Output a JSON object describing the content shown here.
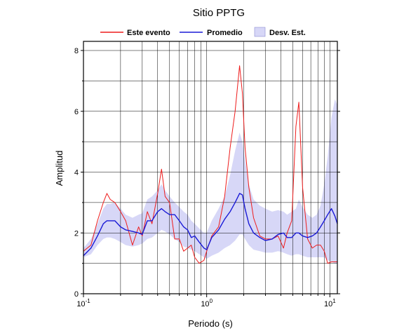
{
  "chart_data": {
    "type": "line",
    "title": "Sitio PPTG",
    "xlabel": "Periodo (s)",
    "ylabel": "Amplitud",
    "x_scale": "log",
    "xlim": [
      0.1,
      11.5
    ],
    "ylim": [
      0,
      8.3
    ],
    "x_ticks": [
      {
        "base": "10",
        "exp": "-1",
        "value": 0.1
      },
      {
        "base": "10",
        "exp": "0",
        "value": 1
      },
      {
        "base": "10",
        "exp": "1",
        "value": 10
      }
    ],
    "y_ticks": [
      0,
      2,
      4,
      6,
      8
    ],
    "grid": true,
    "legend_position": "top",
    "legend": [
      {
        "label": "Este evento",
        "kind": "line",
        "color": "#ee1c1c"
      },
      {
        "label": "Promedio",
        "kind": "line",
        "color": "#1a1ad6"
      },
      {
        "label": "Desv. Est.",
        "kind": "band",
        "color": "#d7d7f7"
      }
    ],
    "x": [
      0.1,
      0.115,
      0.13,
      0.145,
      0.155,
      0.165,
      0.18,
      0.2,
      0.22,
      0.25,
      0.28,
      0.3,
      0.33,
      0.36,
      0.4,
      0.43,
      0.46,
      0.5,
      0.55,
      0.6,
      0.65,
      0.7,
      0.75,
      0.8,
      0.87,
      0.95,
      1.0,
      1.1,
      1.25,
      1.4,
      1.55,
      1.7,
      1.85,
      1.95,
      2.05,
      2.2,
      2.4,
      2.7,
      3.0,
      3.4,
      3.8,
      4.2,
      4.5,
      4.9,
      5.3,
      5.6,
      6.0,
      6.6,
      7.2,
      7.8,
      8.4,
      9.0,
      9.6,
      10.3,
      11.0,
      11.5
    ],
    "series": [
      {
        "name": "Este evento",
        "color": "#ee1c1c",
        "values": [
          1.4,
          1.6,
          2.4,
          3.0,
          3.3,
          3.1,
          3.0,
          2.7,
          2.4,
          1.6,
          2.2,
          1.9,
          2.7,
          2.3,
          3.3,
          4.1,
          3.2,
          3.0,
          1.8,
          1.8,
          1.4,
          1.5,
          1.6,
          1.2,
          1.0,
          1.1,
          1.4,
          1.9,
          2.2,
          3.2,
          4.8,
          6.0,
          7.5,
          6.6,
          4.8,
          3.5,
          2.5,
          1.9,
          1.8,
          1.8,
          1.9,
          1.5,
          2.0,
          2.4,
          5.5,
          6.3,
          3.5,
          1.8,
          1.5,
          1.6,
          1.6,
          1.4,
          1.0,
          1.05,
          1.05,
          1.05
        ]
      },
      {
        "name": "Promedio",
        "color": "#1a1ad6",
        "values": [
          1.25,
          1.5,
          1.9,
          2.3,
          2.4,
          2.4,
          2.4,
          2.2,
          2.1,
          2.05,
          2.0,
          1.95,
          2.4,
          2.4,
          2.7,
          2.8,
          2.7,
          2.6,
          2.6,
          2.4,
          2.2,
          2.1,
          1.85,
          1.9,
          1.7,
          1.5,
          1.45,
          1.85,
          2.1,
          2.45,
          2.7,
          3.0,
          3.3,
          3.25,
          2.8,
          2.3,
          2.0,
          1.85,
          1.75,
          1.8,
          1.95,
          2.0,
          1.85,
          1.85,
          2.0,
          2.0,
          1.9,
          1.85,
          1.9,
          2.0,
          2.2,
          2.4,
          2.6,
          2.8,
          2.55,
          2.3
        ]
      }
    ],
    "band": {
      "name": "Desv. Est.",
      "color": "#d7d7f7",
      "upper": [
        1.5,
        1.8,
        2.3,
        2.8,
        2.95,
        2.95,
        3.0,
        2.8,
        2.6,
        2.5,
        2.6,
        2.65,
        3.1,
        3.2,
        3.4,
        3.6,
        3.4,
        3.2,
        3.0,
        2.85,
        2.7,
        2.6,
        2.4,
        2.3,
        2.15,
        2.0,
        2.0,
        2.4,
        2.8,
        3.2,
        3.9,
        4.7,
        5.3,
        5.0,
        4.4,
        3.6,
        3.1,
        2.9,
        2.8,
        2.7,
        2.75,
        2.7,
        2.6,
        2.7,
        2.8,
        3.1,
        2.85,
        2.6,
        2.5,
        2.6,
        2.9,
        3.6,
        4.5,
        5.8,
        6.4,
        6.2
      ],
      "lower": [
        1.2,
        1.3,
        1.6,
        1.8,
        1.85,
        1.85,
        1.8,
        1.7,
        1.6,
        1.55,
        1.6,
        1.65,
        1.8,
        1.85,
        2.0,
        2.1,
        2.05,
        1.95,
        1.8,
        1.7,
        1.55,
        1.5,
        1.45,
        1.4,
        1.3,
        1.2,
        1.15,
        1.25,
        1.35,
        1.5,
        1.6,
        1.75,
        1.95,
        1.95,
        1.8,
        1.6,
        1.45,
        1.4,
        1.35,
        1.35,
        1.4,
        1.35,
        1.3,
        1.25,
        1.3,
        1.3,
        1.25,
        1.2,
        1.2,
        1.2,
        1.2,
        1.2,
        1.1,
        1.05,
        1.0,
        1.0
      ]
    }
  }
}
